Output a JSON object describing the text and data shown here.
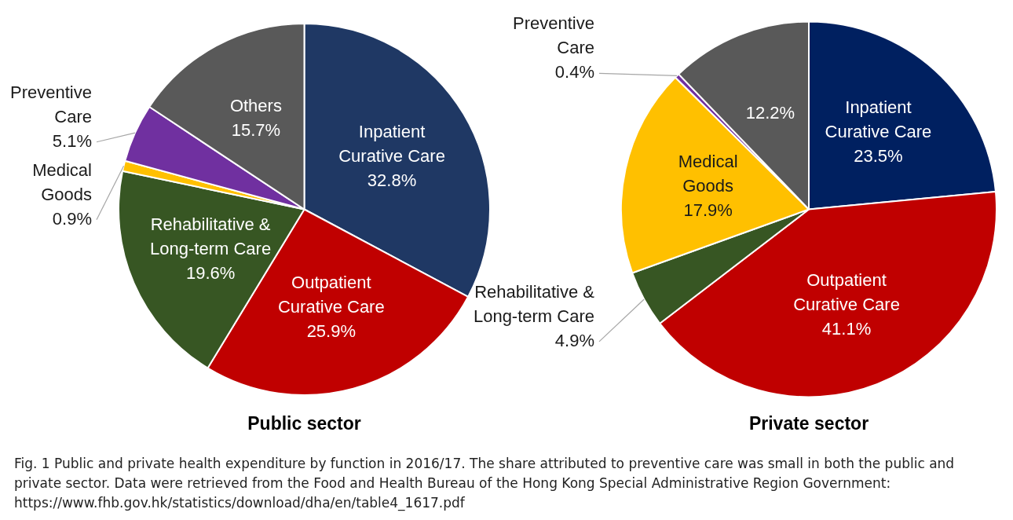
{
  "chart_data": [
    {
      "type": "pie",
      "title": "Public sector",
      "categories": [
        "Inpatient Curative Care",
        "Outpatient Curative Care",
        "Rehabilitative & Long-term Care",
        "Medical Goods",
        "Preventive Care",
        "Others"
      ],
      "values": [
        32.8,
        25.9,
        19.6,
        0.9,
        5.1,
        15.7
      ],
      "value_labels": [
        "32.8%",
        "25.9%",
        "19.6%",
        "0.9%",
        "5.1%",
        "15.7%"
      ],
      "colors": [
        "#1f3864",
        "#c00000",
        "#375623",
        "#ffc000",
        "#7030a0",
        "#595959"
      ],
      "legend": false
    },
    {
      "type": "pie",
      "title": "Private sector",
      "categories": [
        "Inpatient Curative Care",
        "Outpatient Curative Care",
        "Rehabilitative & Long-term Care",
        "Medical Goods",
        "Preventive Care",
        null
      ],
      "values": [
        23.5,
        41.1,
        4.9,
        17.9,
        0.4,
        12.2
      ],
      "value_labels": [
        "23.5%",
        "41.1%",
        "4.9%",
        "17.9%",
        "0.4%",
        "12.2%"
      ],
      "colors": [
        "#002060",
        "#c00000",
        "#375623",
        "#ffc000",
        "#7030a0",
        "#595959"
      ],
      "legend": false
    },
    {
      "type": "other",
      "annotations": [
        "Fig. 1 Public and private health expenditure by function in 2016/17. The share attributed to preventive care was small in both the public and private sector. Data were retrieved from the Food and Health Bureau of the Hong Kong Special Administrative Region Government: https://www.fhb.gov.hk/statistics/download/dha/en/table4_1617.pdf"
      ]
    }
  ]
}
